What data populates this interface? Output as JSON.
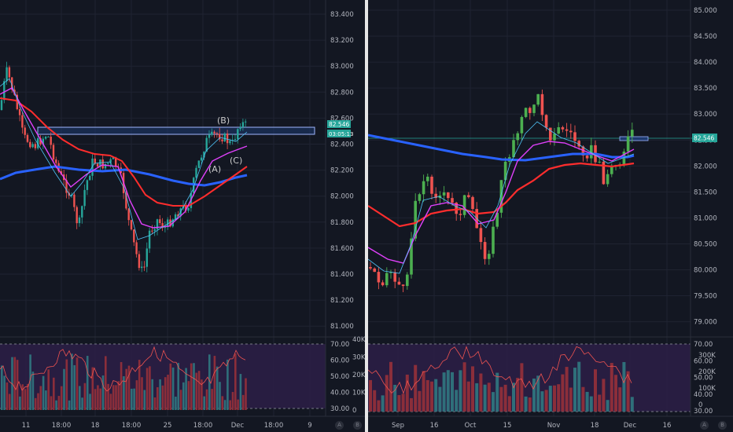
{
  "colors": {
    "up": "#26a69a",
    "up_bright": "#4caf50",
    "down": "#ef5350",
    "ma_red": "#ff2d2d",
    "ma_blue": "#2962ff",
    "ma_magenta": "#e040fb",
    "ma_teal": "#4fc3f7",
    "bg": "#131722",
    "grid": "#1f2331",
    "rsi_fill": "#2d1f46",
    "box_fill": "#1e3a70",
    "box_stroke": "#9fb6ff"
  },
  "left_chart": {
    "price_axis_labels": [
      "83.400",
      "83.200",
      "83.000",
      "82.800",
      "82.600",
      "82.400",
      "82.200",
      "82.000",
      "81.800",
      "81.600",
      "81.400",
      "81.200",
      "81.000"
    ],
    "last_price_tag": "82.546",
    "countdown_tag": "03:05:13",
    "wave_labels": [
      "(B)",
      "(A)",
      "(C)"
    ],
    "volume_axis_labels": [
      "40K",
      "30K",
      "20K",
      "10K",
      "0"
    ],
    "rsi_axis_labels": [
      "70.00",
      "60.00",
      "50.00",
      "40.00",
      "30.00"
    ],
    "time_axis_labels": [
      "11",
      "18:00",
      "18",
      "18:00",
      "25",
      "18:00",
      "Dec",
      "18:00",
      "9"
    ],
    "corner_buttons": [
      "A",
      "B"
    ]
  },
  "right_chart": {
    "price_axis_labels": [
      "85.000",
      "84.500",
      "84.000",
      "83.500",
      "83.000",
      "82.500",
      "82.000",
      "81.500",
      "81.000",
      "80.500",
      "80.000",
      "79.500",
      "79.000"
    ],
    "last_price_tag": "82.546",
    "volume_axis_labels": [
      "300K",
      "200K",
      "100K",
      "0"
    ],
    "rsi_axis_labels": [
      "70.00",
      "60.00",
      "50.00",
      "40.00",
      "30.00"
    ],
    "time_axis_labels": [
      "Sep",
      "16",
      "Oct",
      "15",
      "Nov",
      "18",
      "Dec",
      "16"
    ],
    "corner_buttons": [
      "A",
      "B"
    ]
  }
}
